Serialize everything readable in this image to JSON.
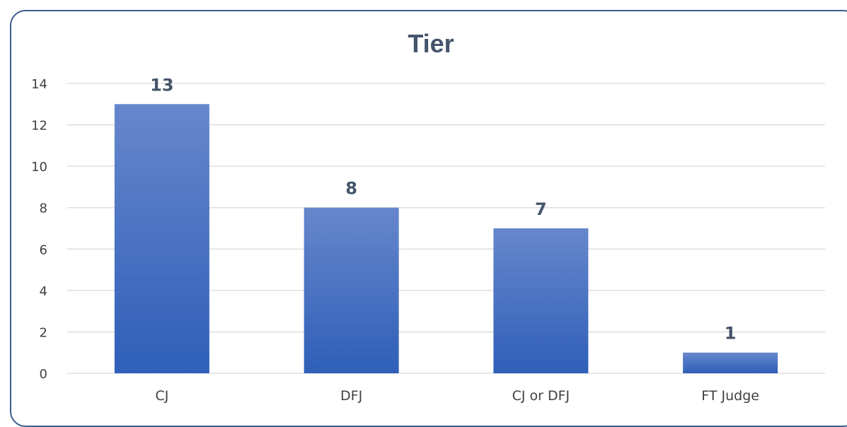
{
  "chart_data": {
    "type": "bar",
    "title": "Tier",
    "categories": [
      "CJ",
      "DFJ",
      "CJ or DFJ",
      "FT Judge"
    ],
    "values": [
      13,
      8,
      7,
      1
    ],
    "ylim": [
      0,
      14
    ],
    "yticks": [
      0,
      2,
      4,
      6,
      8,
      10,
      12,
      14
    ],
    "grid": true,
    "legend": "none",
    "bar_color_top": "#6687cc",
    "bar_color_bottom": "#2f5fb8"
  }
}
